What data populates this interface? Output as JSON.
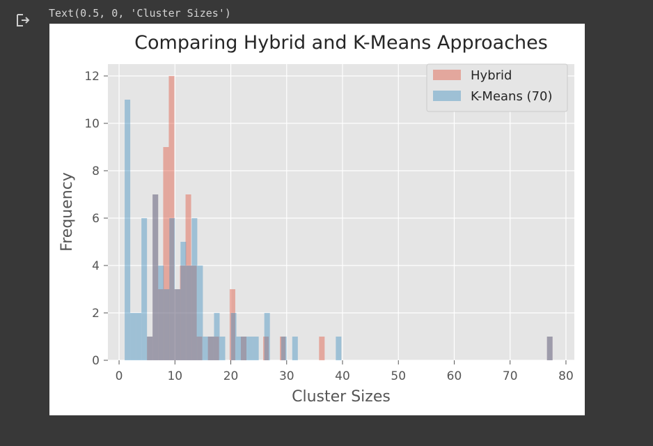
{
  "output": {
    "text": "Text(0.5, 0, 'Cluster Sizes')",
    "icon": "output-arrow-icon"
  },
  "chart_data": {
    "type": "bar",
    "title": "Comparing Hybrid and K-Means Approaches",
    "xlabel": "Cluster Sizes",
    "ylabel": "Frequency",
    "xlim": [
      -2,
      81.5
    ],
    "ylim": [
      0,
      12.5
    ],
    "xticks": [
      0,
      10,
      20,
      30,
      40,
      50,
      60,
      70,
      80
    ],
    "yticks": [
      0,
      2,
      4,
      6,
      8,
      10,
      12
    ],
    "grid": true,
    "legend": "top-right",
    "series": [
      {
        "name": "Hybrid",
        "color": "#E24A33",
        "opacity": 0.4,
        "bins": [
          [
            5,
            6,
            1
          ],
          [
            6,
            7,
            7
          ],
          [
            7,
            7.9,
            3
          ],
          [
            7.9,
            8.9,
            9
          ],
          [
            8.9,
            9.9,
            12
          ],
          [
            9.9,
            10.9,
            3
          ],
          [
            10.9,
            11.9,
            4
          ],
          [
            11.9,
            12.9,
            7
          ],
          [
            12.9,
            13.9,
            4
          ],
          [
            13.9,
            14.9,
            1
          ],
          [
            15.9,
            16.9,
            1
          ],
          [
            16.9,
            17.9,
            1
          ],
          [
            19.8,
            20.8,
            3
          ],
          [
            21.8,
            22.8,
            1
          ],
          [
            25.8,
            26.8,
            1
          ],
          [
            28.8,
            29.8,
            1
          ],
          [
            35.8,
            36.8,
            1
          ],
          [
            76.6,
            77.6,
            1
          ]
        ]
      },
      {
        "name": "K-Means (70)",
        "color": "#348ABD",
        "opacity": 0.4,
        "bins": [
          [
            1,
            2,
            11
          ],
          [
            2,
            3,
            2
          ],
          [
            3,
            4,
            2
          ],
          [
            4,
            5,
            6
          ],
          [
            5,
            6,
            1
          ],
          [
            6,
            7,
            7
          ],
          [
            7,
            8,
            4
          ],
          [
            8,
            9,
            3
          ],
          [
            9,
            10,
            6
          ],
          [
            10,
            11,
            3
          ],
          [
            11,
            12,
            5
          ],
          [
            12,
            13,
            4
          ],
          [
            13,
            14,
            6
          ],
          [
            14,
            15,
            4
          ],
          [
            15,
            16,
            1
          ],
          [
            16,
            17,
            1
          ],
          [
            17,
            18,
            2
          ],
          [
            18,
            19,
            1
          ],
          [
            20,
            21,
            2
          ],
          [
            21,
            22,
            1
          ],
          [
            22,
            23,
            1
          ],
          [
            23,
            24,
            1
          ],
          [
            24,
            25,
            1
          ],
          [
            26,
            27,
            2
          ],
          [
            29,
            30,
            1
          ],
          [
            31,
            32,
            1
          ],
          [
            38.8,
            39.8,
            1
          ],
          [
            76.6,
            77.6,
            1
          ]
        ]
      }
    ]
  }
}
